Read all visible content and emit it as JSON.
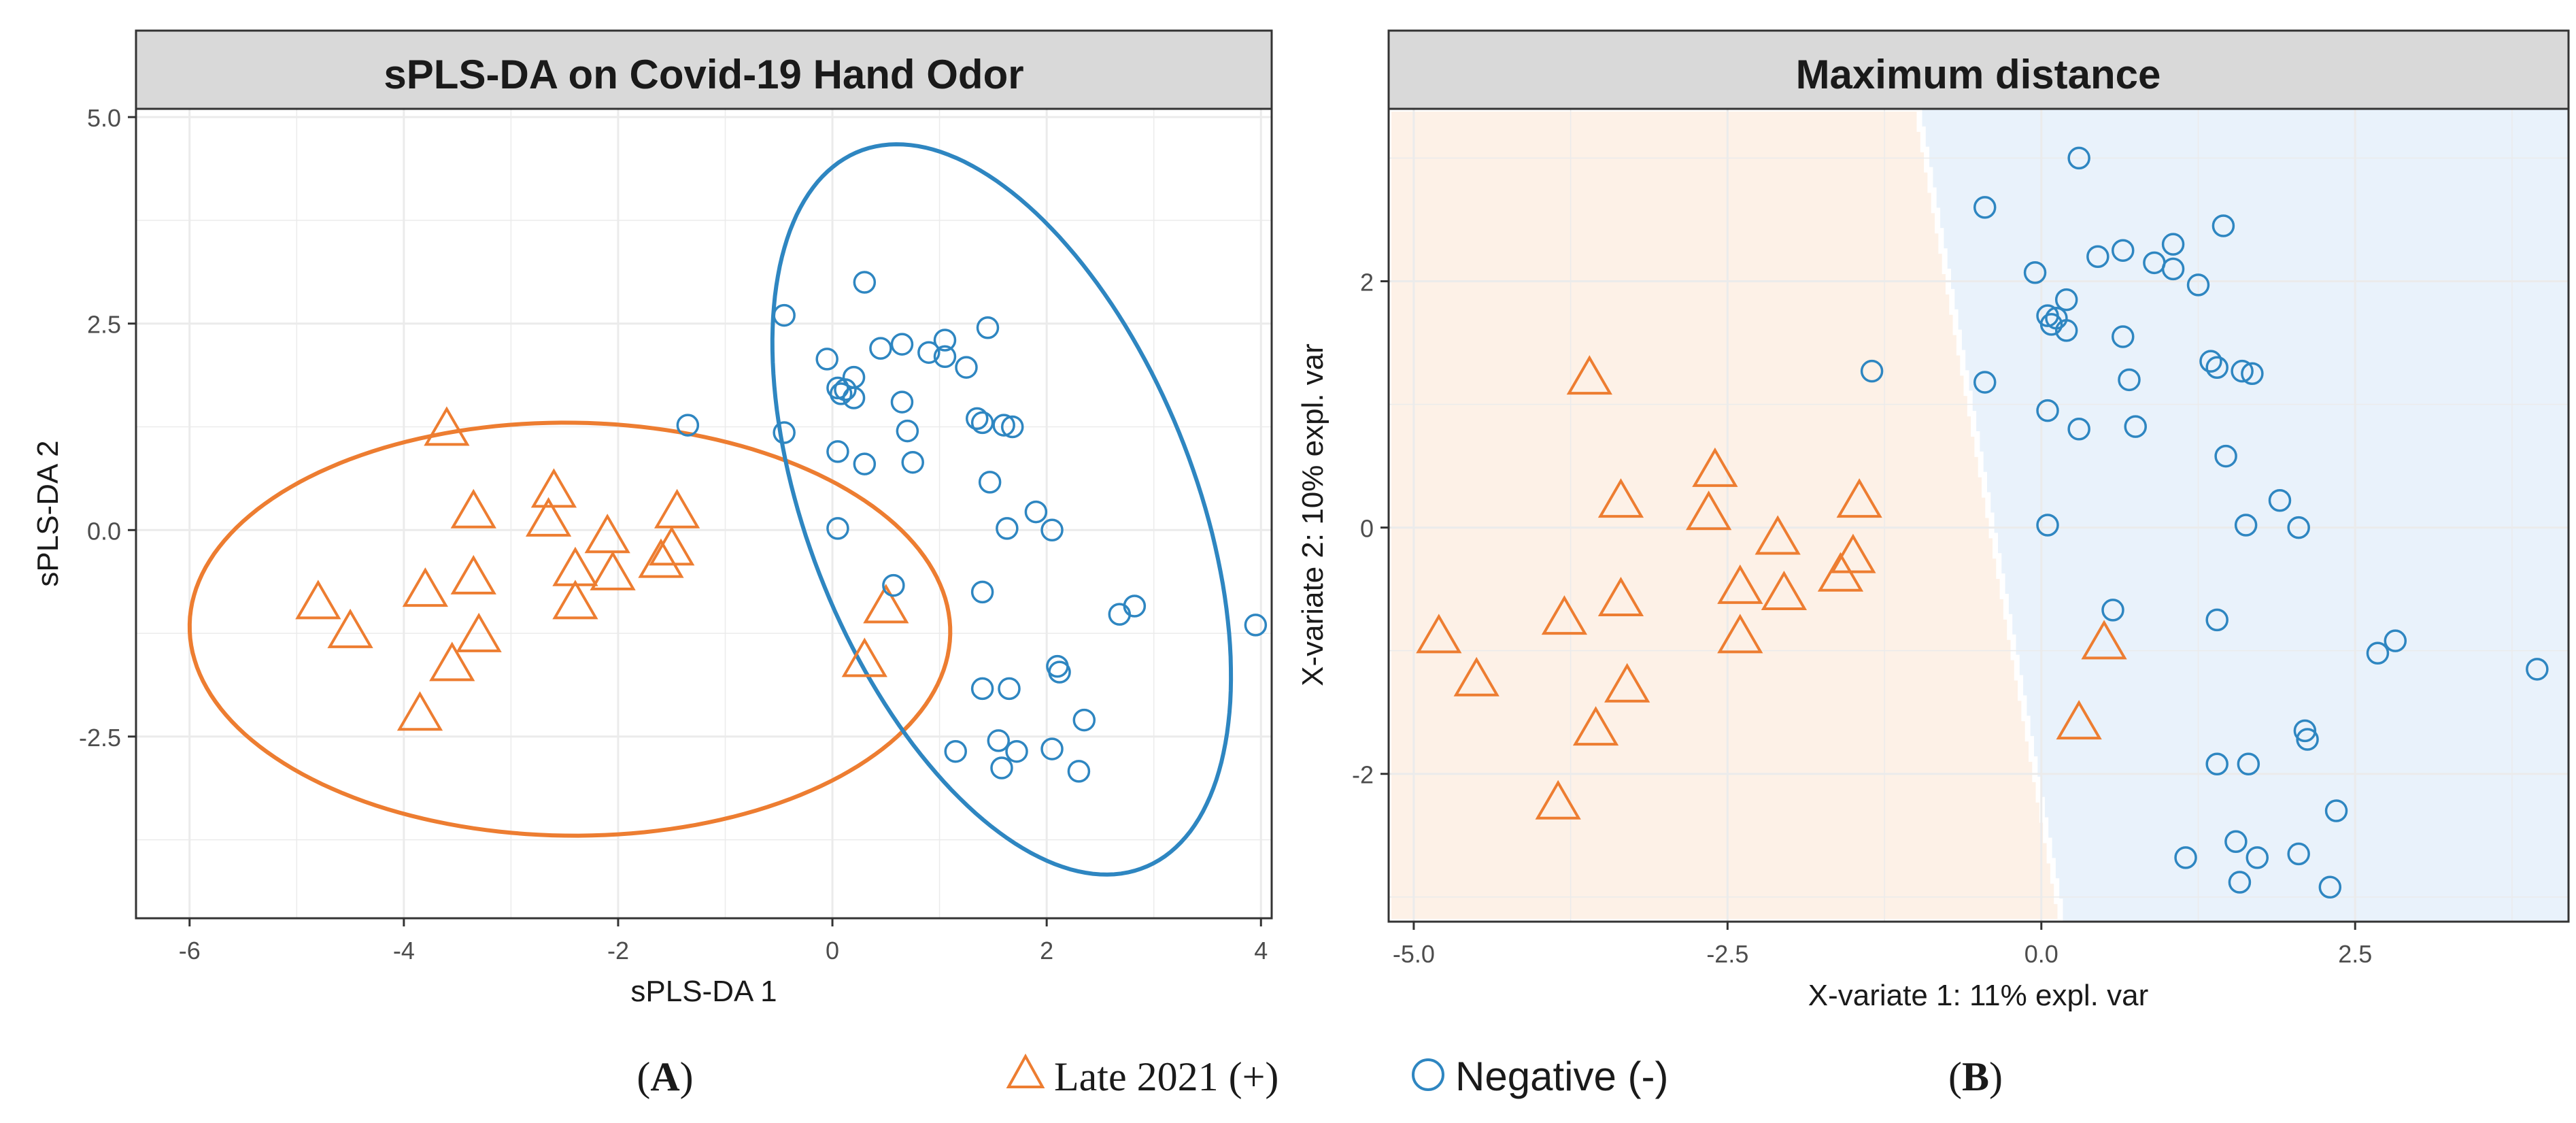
{
  "figure": {
    "panel_label_a": "A",
    "panel_label_b": "B",
    "legend": [
      {
        "label": "Late 2021 (+)",
        "shape": "triangle",
        "color": "#ed7d31"
      },
      {
        "label": "Negative (-)",
        "shape": "circle",
        "color": "#2e86c1"
      }
    ]
  },
  "colors": {
    "positive": "#ed7d31",
    "negative": "#2e86c1",
    "region_positive": "#fdf1e7",
    "region_negative": "#e9f2fb",
    "strip_bg": "#d9d9d9",
    "grid": "#ebebeb",
    "border": "#333333"
  },
  "chart_data": [
    {
      "type": "scatter",
      "title": "sPLS-DA on Covid-19 Hand Odor",
      "xlabel": "sPLS-DA 1",
      "ylabel": "sPLS-DA 2",
      "xlim": [
        -6.5,
        4.1
      ],
      "ylim": [
        -4.7,
        5.1
      ],
      "xticks": [
        -6,
        -4,
        -2,
        0,
        2,
        4
      ],
      "xtick_labels": [
        "-6",
        "-4",
        "-2",
        "0",
        "2",
        "4"
      ],
      "yticks": [
        -2.5,
        0,
        2.5,
        5
      ],
      "ytick_labels": [
        "-2.5",
        "0.0",
        "2.5",
        "5.0"
      ],
      "ellipses": [
        {
          "name": "Late 2021 (+)",
          "center": [
            -2.45,
            -1.2
          ],
          "semi_axes": [
            3.55,
            2.5
          ],
          "angle_deg": -1
        },
        {
          "name": "Negative (-)",
          "center": [
            1.58,
            0.25
          ],
          "semi_axes": [
            4.55,
            1.85
          ],
          "angle_deg": -75
        }
      ],
      "series": [
        {
          "name": "Late 2021 (+)",
          "marker": "triangle",
          "points": [
            [
              -3.6,
              1.2
            ],
            [
              -2.6,
              0.45
            ],
            [
              -3.35,
              0.2
            ],
            [
              -2.65,
              0.1
            ],
            [
              -2.1,
              -0.1
            ],
            [
              -1.45,
              0.2
            ],
            [
              -1.5,
              -0.25
            ],
            [
              -2.4,
              -0.5
            ],
            [
              -1.6,
              -0.4
            ],
            [
              -2.05,
              -0.55
            ],
            [
              -3.35,
              -0.6
            ],
            [
              -3.8,
              -0.75
            ],
            [
              -4.8,
              -0.9
            ],
            [
              -2.4,
              -0.9
            ],
            [
              -4.5,
              -1.25
            ],
            [
              -3.3,
              -1.3
            ],
            [
              -3.55,
              -1.65
            ],
            [
              -3.85,
              -2.25
            ],
            [
              0.5,
              -0.95
            ],
            [
              0.3,
              -1.6
            ]
          ]
        },
        {
          "name": "Negative (-)",
          "marker": "circle",
          "points": [
            [
              0.3,
              3.0
            ],
            [
              -0.45,
              2.6
            ],
            [
              1.45,
              2.45
            ],
            [
              0.65,
              2.25
            ],
            [
              0.45,
              2.2
            ],
            [
              1.05,
              2.3
            ],
            [
              0.9,
              2.15
            ],
            [
              1.05,
              2.1
            ],
            [
              -0.05,
              2.07
            ],
            [
              1.25,
              1.97
            ],
            [
              0.2,
              1.85
            ],
            [
              0.05,
              1.72
            ],
            [
              0.12,
              1.7
            ],
            [
              0.08,
              1.65
            ],
            [
              0.2,
              1.6
            ],
            [
              -0.45,
              1.18
            ],
            [
              0.65,
              1.55
            ],
            [
              0.7,
              1.2
            ],
            [
              1.35,
              1.35
            ],
            [
              1.4,
              1.3
            ],
            [
              1.6,
              1.27
            ],
            [
              1.68,
              1.25
            ],
            [
              -1.35,
              1.27
            ],
            [
              0.05,
              0.95
            ],
            [
              0.3,
              0.8
            ],
            [
              0.75,
              0.82
            ],
            [
              1.47,
              0.58
            ],
            [
              1.9,
              0.22
            ],
            [
              0.05,
              0.02
            ],
            [
              1.63,
              0.02
            ],
            [
              2.05,
              0.0
            ],
            [
              0.57,
              -0.67
            ],
            [
              1.4,
              -0.75
            ],
            [
              2.82,
              -0.92
            ],
            [
              2.68,
              -1.02
            ],
            [
              3.95,
              -1.15
            ],
            [
              2.1,
              -1.65
            ],
            [
              2.12,
              -1.72
            ],
            [
              1.4,
              -1.92
            ],
            [
              1.65,
              -1.92
            ],
            [
              2.35,
              -2.3
            ],
            [
              1.15,
              -2.68
            ],
            [
              2.05,
              -2.65
            ],
            [
              1.55,
              -2.55
            ],
            [
              1.72,
              -2.68
            ],
            [
              1.58,
              -2.88
            ],
            [
              2.3,
              -2.92
            ]
          ]
        }
      ]
    },
    {
      "type": "scatter",
      "title": "Maximum distance",
      "xlabel": "X-variate 1: 11% expl. var",
      "ylabel": "X-variate 2: 10% expl. var",
      "xlim": [
        -5.2,
        4.2
      ],
      "ylim": [
        -3.2,
        3.4
      ],
      "xticks": [
        -5,
        -2.5,
        0,
        2.5
      ],
      "xtick_labels": [
        "-5.0",
        "-2.5",
        "0.0",
        "2.5"
      ],
      "yticks": [
        -2,
        0,
        2
      ],
      "ytick_labels": [
        "-2",
        "0",
        "2"
      ],
      "decision_boundary": {
        "top": [
          -1.0,
          3.4
        ],
        "bottom": [
          0.15,
          -3.2
        ],
        "left_class": "Late 2021 (+)",
        "right_class": "Negative (-)"
      },
      "series": [
        {
          "name": "Late 2021 (+)",
          "marker": "triangle",
          "points": [
            [
              -3.6,
              1.2
            ],
            [
              -2.6,
              0.45
            ],
            [
              -3.35,
              0.2
            ],
            [
              -2.65,
              0.1
            ],
            [
              -2.1,
              -0.1
            ],
            [
              -1.45,
              0.2
            ],
            [
              -1.5,
              -0.25
            ],
            [
              -2.4,
              -0.5
            ],
            [
              -1.6,
              -0.4
            ],
            [
              -2.05,
              -0.55
            ],
            [
              -3.35,
              -0.6
            ],
            [
              -3.8,
              -0.75
            ],
            [
              -4.8,
              -0.9
            ],
            [
              -2.4,
              -0.9
            ],
            [
              -4.5,
              -1.25
            ],
            [
              -3.3,
              -1.3
            ],
            [
              -3.55,
              -1.65
            ],
            [
              -3.85,
              -2.25
            ],
            [
              0.5,
              -0.95
            ],
            [
              0.3,
              -1.6
            ]
          ]
        },
        {
          "name": "Negative (-)",
          "marker": "circle",
          "points": [
            [
              0.3,
              3.0
            ],
            [
              -0.45,
              2.6
            ],
            [
              1.45,
              2.45
            ],
            [
              0.65,
              2.25
            ],
            [
              0.45,
              2.2
            ],
            [
              1.05,
              2.3
            ],
            [
              0.9,
              2.15
            ],
            [
              1.05,
              2.1
            ],
            [
              -0.05,
              2.07
            ],
            [
              1.25,
              1.97
            ],
            [
              0.2,
              1.85
            ],
            [
              0.05,
              1.72
            ],
            [
              0.12,
              1.7
            ],
            [
              0.08,
              1.65
            ],
            [
              0.2,
              1.6
            ],
            [
              -0.45,
              1.18
            ],
            [
              0.65,
              1.55
            ],
            [
              0.7,
              1.2
            ],
            [
              1.35,
              1.35
            ],
            [
              1.4,
              1.3
            ],
            [
              1.6,
              1.27
            ],
            [
              1.68,
              1.25
            ],
            [
              -1.35,
              1.27
            ],
            [
              0.05,
              0.95
            ],
            [
              0.3,
              0.8
            ],
            [
              0.75,
              0.82
            ],
            [
              1.47,
              0.58
            ],
            [
              1.9,
              0.22
            ],
            [
              0.05,
              0.02
            ],
            [
              1.63,
              0.02
            ],
            [
              2.05,
              0.0
            ],
            [
              0.57,
              -0.67
            ],
            [
              1.4,
              -0.75
            ],
            [
              2.82,
              -0.92
            ],
            [
              2.68,
              -1.02
            ],
            [
              3.95,
              -1.15
            ],
            [
              2.1,
              -1.65
            ],
            [
              2.12,
              -1.72
            ],
            [
              1.4,
              -1.92
            ],
            [
              1.65,
              -1.92
            ],
            [
              2.35,
              -2.3
            ],
            [
              1.15,
              -2.68
            ],
            [
              2.05,
              -2.65
            ],
            [
              1.55,
              -2.55
            ],
            [
              1.72,
              -2.68
            ],
            [
              1.58,
              -2.88
            ],
            [
              2.3,
              -2.92
            ]
          ]
        }
      ]
    }
  ]
}
